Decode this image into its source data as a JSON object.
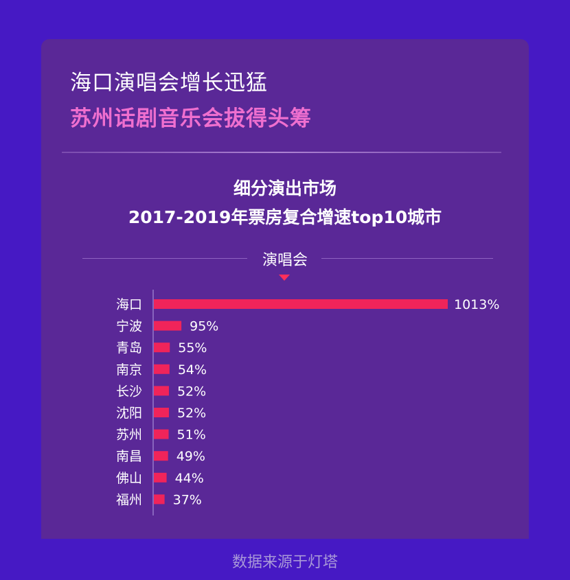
{
  "header": {
    "title": "海口演唱会增长迅猛",
    "subtitle": "苏州话剧音乐会拔得头筹"
  },
  "chart_heading": {
    "line1": "细分演出市场",
    "line2": "2017-2019年票房复合增速top10城市"
  },
  "tab": {
    "label": "演唱会"
  },
  "footer": {
    "source": "数据来源于灯塔"
  },
  "colors": {
    "background": "#4619c4",
    "card": "#5a2897",
    "bar": "#f0245a",
    "subtitle": "#ef6fcf"
  },
  "chart_data": {
    "type": "bar",
    "orientation": "horizontal",
    "categories": [
      "海口",
      "宁波",
      "青岛",
      "南京",
      "长沙",
      "沈阳",
      "苏州",
      "南昌",
      "佛山",
      "福州"
    ],
    "values": [
      1013,
      95,
      55,
      54,
      52,
      52,
      51,
      49,
      44,
      37
    ],
    "data_labels": [
      "1013%",
      "95%",
      "55%",
      "54%",
      "52%",
      "52%",
      "51%",
      "49%",
      "44%",
      "37%"
    ],
    "unit": "%",
    "grid": false
  }
}
